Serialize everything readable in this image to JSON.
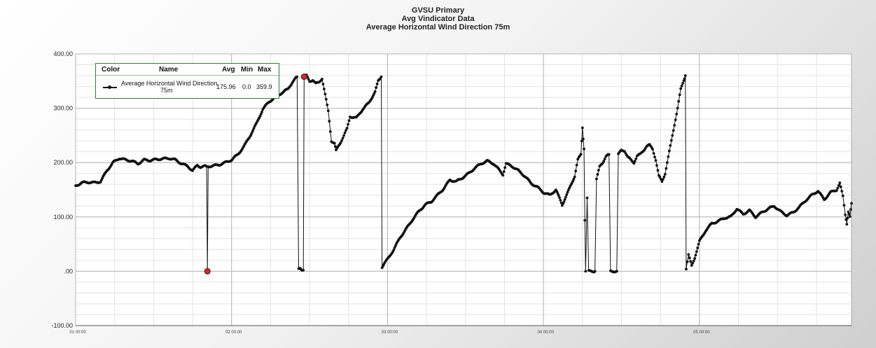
{
  "header": {
    "title_line1": "GVSU Primary",
    "title_line2": "Avg Vindicator Data",
    "title_line3": "Average Horizontal Wind Direction 75m"
  },
  "legend": {
    "col_color": "Color",
    "col_name": "Name",
    "col_avg": "Avg",
    "col_min": "Min",
    "col_max": "Max",
    "row_name_line1": "Average Horizontal Wind Direction",
    "row_name_line2": "75m",
    "row_avg": "175.96",
    "row_min": "0.0",
    "row_max": "359.9",
    "line_color": "#111111"
  },
  "chart_data": {
    "type": "line",
    "title": "Average Horizontal Wind Direction 75m",
    "ylim": [
      -100,
      400
    ],
    "y_ticks": [
      400,
      300,
      200,
      100,
      0,
      -100
    ],
    "y_tick_labels": [
      "400.00",
      "300.00",
      "200.00",
      "100.00",
      ".00",
      "-100.00"
    ],
    "x_unit": "hours",
    "x_range": [
      1.0,
      5.975
    ],
    "x_ticks": [
      1,
      2,
      3,
      4,
      5
    ],
    "x_tick_labels": [
      "01 00:00",
      "02 00:00",
      "03 00:00",
      "04 00:00",
      "05 00:00"
    ],
    "grid": true,
    "legend_position": "top-left",
    "series": [
      {
        "name": "Average Horizontal Wind Direction 75m",
        "color": "#111111",
        "points": [
          [
            1.0,
            157
          ],
          [
            1.04,
            163
          ],
          [
            1.08,
            164
          ],
          [
            1.12,
            163
          ],
          [
            1.16,
            165
          ],
          [
            1.2,
            185
          ],
          [
            1.24,
            200
          ],
          [
            1.28,
            208
          ],
          [
            1.32,
            205
          ],
          [
            1.36,
            203
          ],
          [
            1.4,
            198
          ],
          [
            1.44,
            205
          ],
          [
            1.48,
            204
          ],
          [
            1.52,
            206
          ],
          [
            1.56,
            207
          ],
          [
            1.6,
            208
          ],
          [
            1.64,
            205
          ],
          [
            1.68,
            198
          ],
          [
            1.72,
            193
          ],
          [
            1.75,
            185
          ],
          [
            1.78,
            195
          ],
          [
            1.8,
            192
          ],
          [
            1.82,
            193
          ],
          [
            1.84,
            193
          ],
          [
            1.845,
            0
          ],
          [
            1.85,
            193
          ],
          [
            1.88,
            194
          ],
          [
            1.92,
            196
          ],
          [
            1.96,
            200
          ],
          [
            2.0,
            205
          ],
          [
            2.04,
            215
          ],
          [
            2.08,
            230
          ],
          [
            2.12,
            250
          ],
          [
            2.16,
            272
          ],
          [
            2.2,
            298
          ],
          [
            2.24,
            312
          ],
          [
            2.28,
            320
          ],
          [
            2.32,
            328
          ],
          [
            2.36,
            335
          ],
          [
            2.39,
            348
          ],
          [
            2.42,
            358
          ],
          [
            2.43,
            5
          ],
          [
            2.44,
            7
          ],
          [
            2.45,
            3
          ],
          [
            2.46,
            2
          ],
          [
            2.465,
            358
          ],
          [
            2.48,
            360
          ],
          [
            2.5,
            350
          ],
          [
            2.52,
            352
          ],
          [
            2.54,
            345
          ],
          [
            2.56,
            348
          ],
          [
            2.58,
            355
          ],
          [
            2.6,
            325
          ],
          [
            2.62,
            295
          ],
          [
            2.64,
            240
          ],
          [
            2.66,
            235
          ],
          [
            2.67,
            222
          ],
          [
            2.7,
            238
          ],
          [
            2.72,
            250
          ],
          [
            2.74,
            262
          ],
          [
            2.76,
            285
          ],
          [
            2.8,
            282
          ],
          [
            2.84,
            298
          ],
          [
            2.88,
            310
          ],
          [
            2.92,
            330
          ],
          [
            2.94,
            350
          ],
          [
            2.96,
            358
          ],
          [
            2.965,
            8
          ],
          [
            2.98,
            15
          ],
          [
            3.0,
            22
          ],
          [
            3.04,
            40
          ],
          [
            3.08,
            62
          ],
          [
            3.12,
            78
          ],
          [
            3.16,
            95
          ],
          [
            3.2,
            110
          ],
          [
            3.24,
            122
          ],
          [
            3.28,
            128
          ],
          [
            3.32,
            140
          ],
          [
            3.36,
            152
          ],
          [
            3.4,
            168
          ],
          [
            3.44,
            165
          ],
          [
            3.48,
            172
          ],
          [
            3.52,
            180
          ],
          [
            3.56,
            190
          ],
          [
            3.6,
            198
          ],
          [
            3.64,
            203
          ],
          [
            3.68,
            198
          ],
          [
            3.72,
            185
          ],
          [
            3.74,
            178
          ],
          [
            3.76,
            198
          ],
          [
            3.8,
            193
          ],
          [
            3.84,
            185
          ],
          [
            3.88,
            175
          ],
          [
            3.92,
            162
          ],
          [
            3.96,
            155
          ],
          [
            4.0,
            145
          ],
          [
            4.04,
            140
          ],
          [
            4.08,
            150
          ],
          [
            4.12,
            122
          ],
          [
            4.16,
            148
          ],
          [
            4.2,
            175
          ],
          [
            4.22,
            205
          ],
          [
            4.24,
            215
          ],
          [
            4.25,
            265
          ],
          [
            4.26,
            225
          ],
          [
            4.265,
            95
          ],
          [
            4.27,
            0
          ],
          [
            4.28,
            135
          ],
          [
            4.29,
            0
          ],
          [
            4.3,
            0
          ],
          [
            4.32,
            0
          ],
          [
            4.33,
            0
          ],
          [
            4.34,
            170
          ],
          [
            4.36,
            192
          ],
          [
            4.38,
            200
          ],
          [
            4.4,
            212
          ],
          [
            4.42,
            215
          ],
          [
            4.43,
            0
          ],
          [
            4.44,
            0
          ],
          [
            4.46,
            0
          ],
          [
            4.47,
            0
          ],
          [
            4.48,
            215
          ],
          [
            4.5,
            223
          ],
          [
            4.52,
            222
          ],
          [
            4.54,
            210
          ],
          [
            4.56,
            205
          ],
          [
            4.58,
            200
          ],
          [
            4.6,
            212
          ],
          [
            4.62,
            215
          ],
          [
            4.64,
            222
          ],
          [
            4.66,
            230
          ],
          [
            4.68,
            232
          ],
          [
            4.7,
            225
          ],
          [
            4.72,
            205
          ],
          [
            4.74,
            175
          ],
          [
            4.76,
            165
          ],
          [
            4.78,
            180
          ],
          [
            4.8,
            210
          ],
          [
            4.82,
            240
          ],
          [
            4.84,
            270
          ],
          [
            4.86,
            300
          ],
          [
            4.88,
            335
          ],
          [
            4.9,
            352
          ],
          [
            4.91,
            360
          ],
          [
            4.915,
            5
          ],
          [
            4.93,
            30
          ],
          [
            4.95,
            10
          ],
          [
            4.97,
            25
          ],
          [
            5.0,
            55
          ],
          [
            5.04,
            75
          ],
          [
            5.08,
            88
          ],
          [
            5.12,
            92
          ],
          [
            5.16,
            98
          ],
          [
            5.2,
            100
          ],
          [
            5.24,
            115
          ],
          [
            5.28,
            105
          ],
          [
            5.32,
            112
          ],
          [
            5.36,
            100
          ],
          [
            5.4,
            108
          ],
          [
            5.44,
            115
          ],
          [
            5.48,
            120
          ],
          [
            5.52,
            110
          ],
          [
            5.56,
            103
          ],
          [
            5.6,
            108
          ],
          [
            5.64,
            118
          ],
          [
            5.68,
            130
          ],
          [
            5.72,
            140
          ],
          [
            5.76,
            148
          ],
          [
            5.8,
            132
          ],
          [
            5.84,
            145
          ],
          [
            5.88,
            150
          ],
          [
            5.9,
            162
          ],
          [
            5.92,
            138
          ],
          [
            5.935,
            105
          ],
          [
            5.945,
            88
          ],
          [
            5.955,
            110
          ],
          [
            5.965,
            100
          ],
          [
            5.975,
            125
          ]
        ]
      }
    ],
    "highlighted_points": [
      [
        1.845,
        0
      ],
      [
        2.465,
        358
      ]
    ]
  }
}
